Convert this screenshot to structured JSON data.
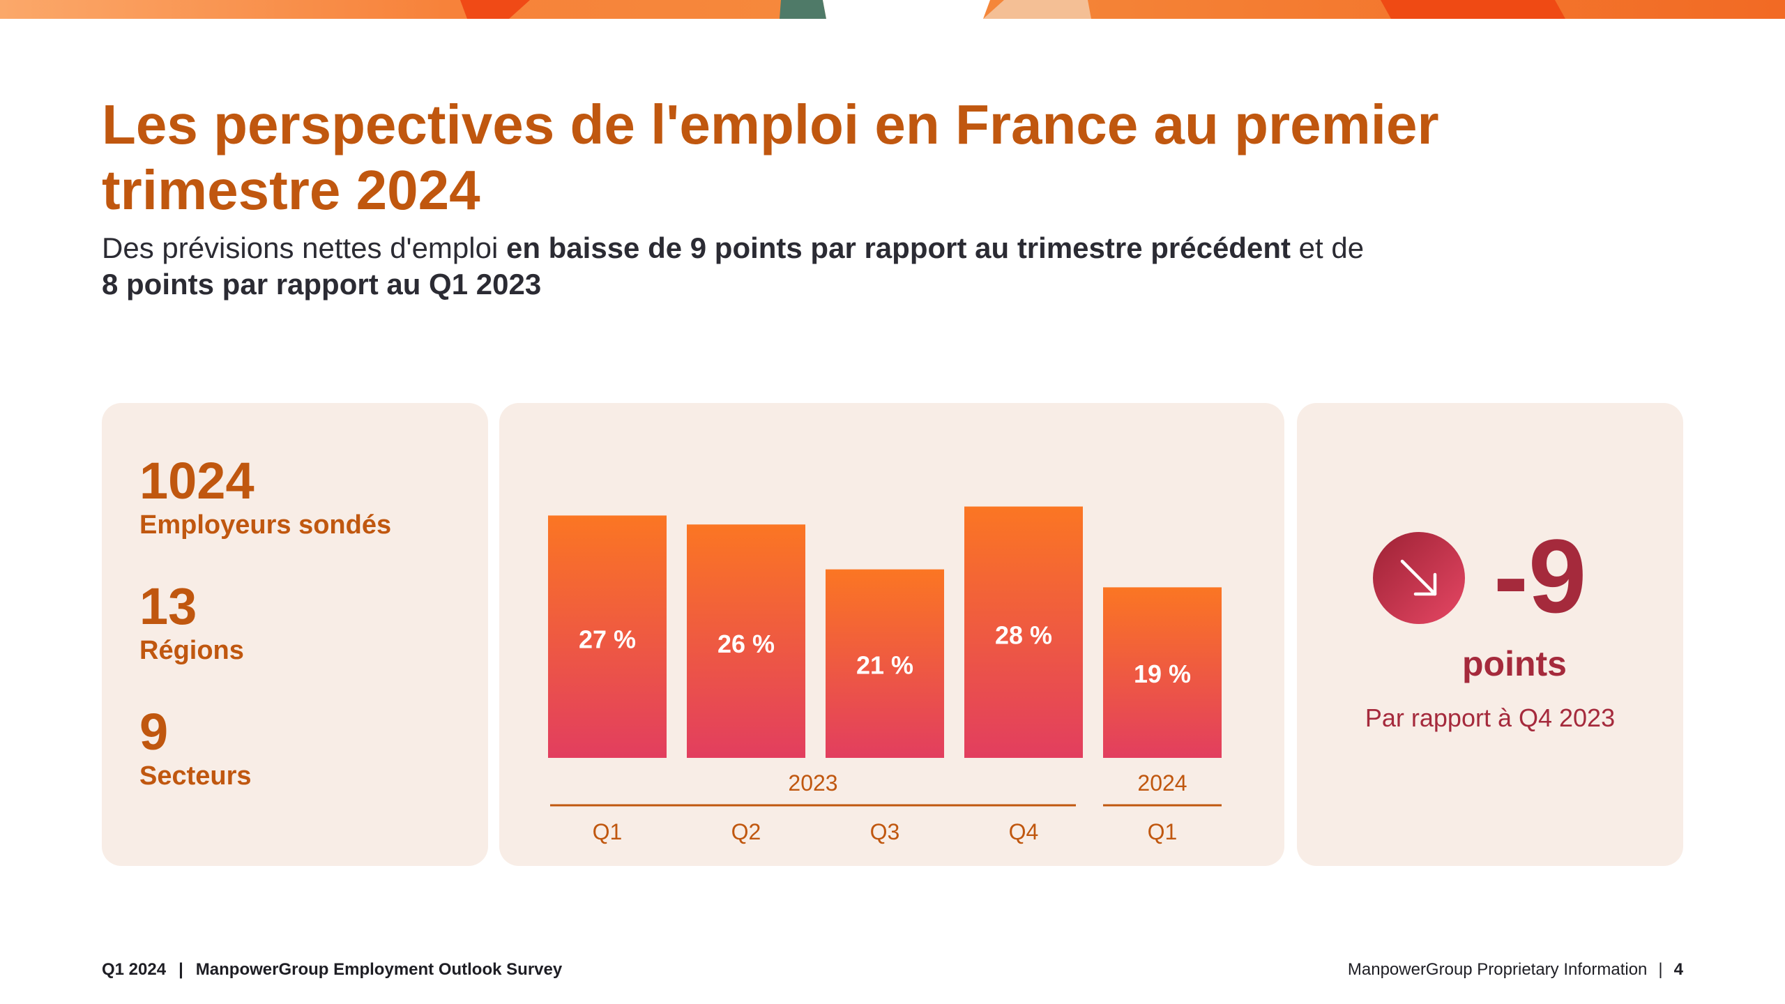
{
  "header": {
    "title": "Les perspectives de l'emploi en France au premier trimestre 2024",
    "subtitle_part1": "Des prévisions nettes d'emploi ",
    "subtitle_bold1": "en baisse de 9 points par rapport au trimestre précédent",
    "subtitle_part2": " et de ",
    "subtitle_bold2": "8 points par rapport au Q1 2023"
  },
  "stats": [
    {
      "value": "1024",
      "label": "Employeurs sondés"
    },
    {
      "value": "13",
      "label": "Régions"
    },
    {
      "value": "9",
      "label": "Secteurs"
    }
  ],
  "change": {
    "value": "-9",
    "unit": "points",
    "note": "Par rapport à Q4 2023",
    "icon": "arrow-down-right-icon"
  },
  "chart_data": {
    "type": "bar",
    "categories": [
      "Q1",
      "Q2",
      "Q3",
      "Q4",
      "Q1"
    ],
    "groups": [
      {
        "label": "2023",
        "categories": [
          "Q1",
          "Q2",
          "Q3",
          "Q4"
        ]
      },
      {
        "label": "2024",
        "categories": [
          "Q1"
        ]
      }
    ],
    "values": [
      27,
      26,
      21,
      28,
      19
    ],
    "data_labels": [
      "27 %",
      "26 %",
      "21 %",
      "28 %",
      "19 %"
    ],
    "ylim": [
      0,
      32
    ],
    "grid": false,
    "colors": {
      "bar_top": "#fb7623",
      "bar_bottom": "#e23e5f",
      "axis": "#c0570f"
    }
  },
  "footer": {
    "survey_period": "Q1 2024",
    "survey_name": "ManpowerGroup Employment Outlook Survey",
    "info": "ManpowerGroup Proprietary Information",
    "page": "4"
  }
}
